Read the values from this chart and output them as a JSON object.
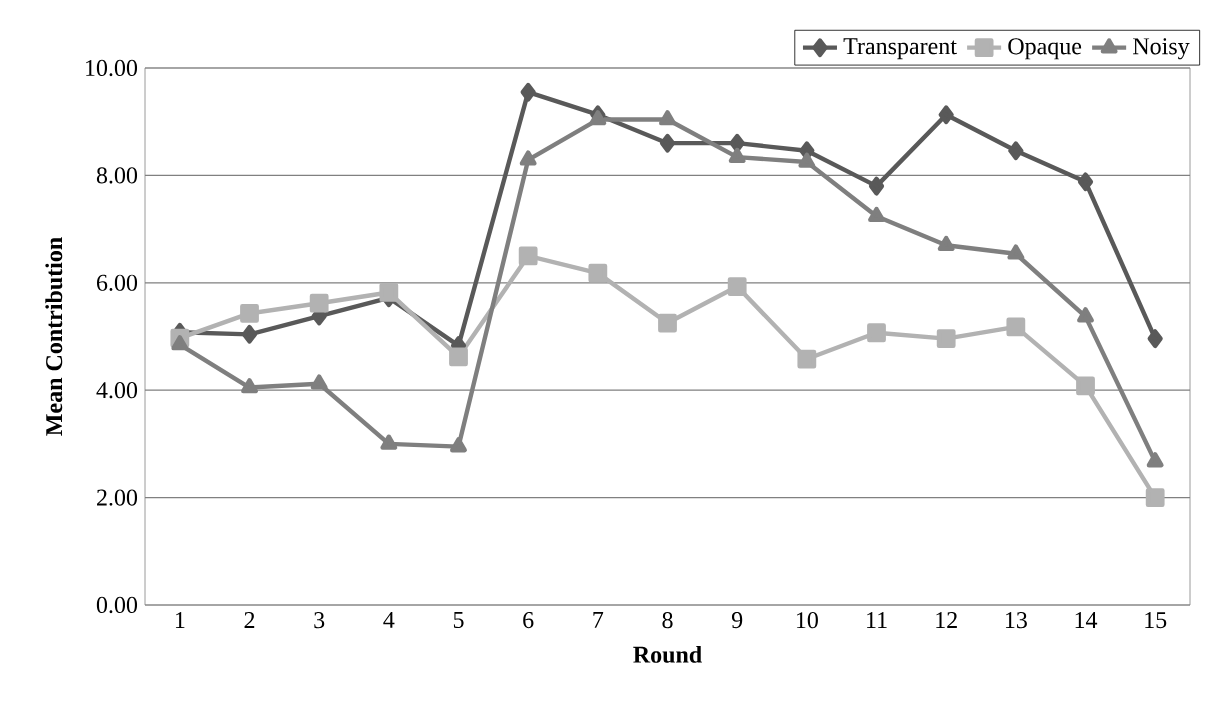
{
  "chart_data": {
    "type": "line",
    "xlabel": "Round",
    "ylabel": "Mean Contribution",
    "categories": [
      "1",
      "2",
      "3",
      "4",
      "5",
      "6",
      "7",
      "8",
      "9",
      "10",
      "11",
      "12",
      "13",
      "14",
      "15"
    ],
    "series": [
      {
        "name": "Transparent",
        "color": "#595959",
        "marker": "diamond",
        "values": [
          5.08,
          5.04,
          5.38,
          5.72,
          4.83,
          9.55,
          9.13,
          8.6,
          8.6,
          8.46,
          7.8,
          9.13,
          8.46,
          7.88,
          4.96
        ]
      },
      {
        "name": "Opaque",
        "color": "#b2b2b2",
        "marker": "square",
        "values": [
          4.97,
          5.43,
          5.62,
          5.82,
          4.62,
          6.5,
          6.18,
          5.25,
          5.93,
          4.58,
          5.07,
          4.96,
          5.18,
          4.08,
          2.0
        ]
      },
      {
        "name": "Noisy",
        "color": "#7f7f7f",
        "marker": "triangle",
        "values": [
          4.85,
          4.05,
          4.12,
          3.0,
          2.95,
          8.29,
          9.04,
          9.04,
          8.34,
          8.25,
          7.24,
          6.7,
          6.54,
          5.37,
          2.67
        ]
      }
    ],
    "ylim": [
      0,
      10
    ],
    "yticks": [
      {
        "value": 0,
        "label": "0.00"
      },
      {
        "value": 2,
        "label": "2.00"
      },
      {
        "value": 4,
        "label": "4.00"
      },
      {
        "value": 6,
        "label": "6.00"
      },
      {
        "value": 8,
        "label": "8.00"
      },
      {
        "value": 10,
        "label": "10.00"
      }
    ],
    "grid": "y",
    "legend": "top right",
    "line_style": "solid"
  }
}
